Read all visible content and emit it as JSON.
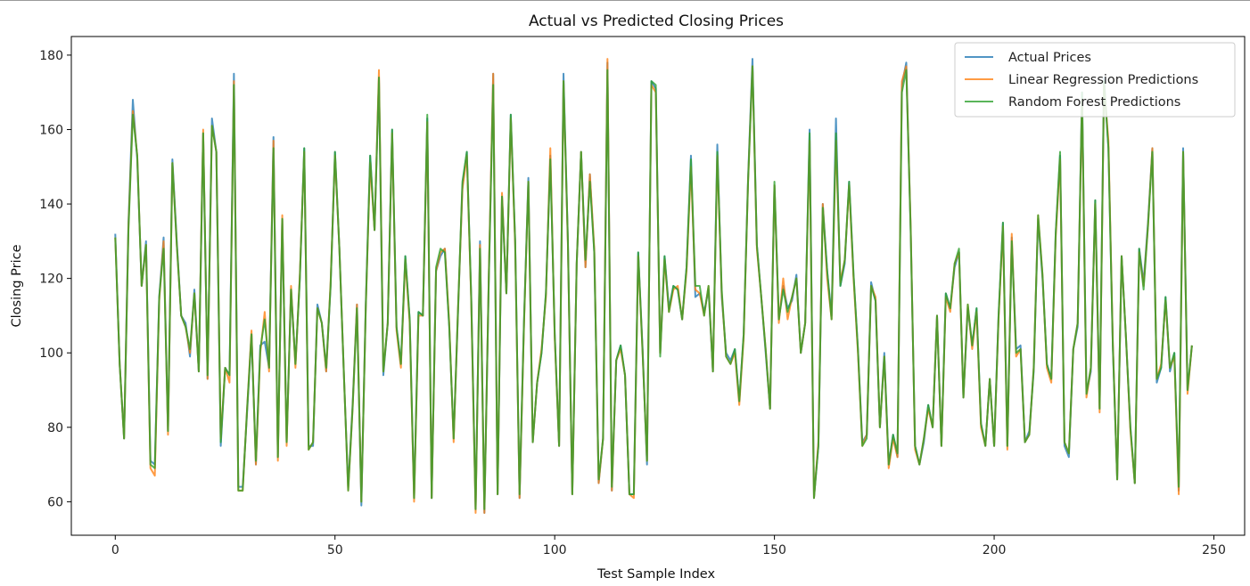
{
  "chart_data": {
    "type": "line",
    "title": "Actual vs Predicted Closing Prices",
    "xlabel": "Test Sample Index",
    "ylabel": "Closing Price",
    "xlim": [
      -10,
      257
    ],
    "ylim": [
      51,
      185
    ],
    "xticks": [
      0,
      50,
      100,
      150,
      200,
      250
    ],
    "yticks": [
      60,
      80,
      100,
      120,
      140,
      160,
      180
    ],
    "grid": false,
    "legend_position": "top-right",
    "x": [
      0,
      1,
      2,
      3,
      4,
      5,
      6,
      7,
      8,
      9,
      10,
      11,
      12,
      13,
      14,
      15,
      16,
      17,
      18,
      19,
      20,
      21,
      22,
      23,
      24,
      25,
      26,
      27,
      28,
      29,
      30,
      31,
      32,
      33,
      34,
      35,
      36,
      37,
      38,
      39,
      40,
      41,
      42,
      43,
      44,
      45,
      46,
      47,
      48,
      49,
      50,
      51,
      52,
      53,
      54,
      55,
      56,
      57,
      58,
      59,
      60,
      61,
      62,
      63,
      64,
      65,
      66,
      67,
      68,
      69,
      70,
      71,
      72,
      73,
      74,
      75,
      76,
      77,
      78,
      79,
      80,
      81,
      82,
      83,
      84,
      85,
      86,
      87,
      88,
      89,
      90,
      91,
      92,
      93,
      94,
      95,
      96,
      97,
      98,
      99,
      100,
      101,
      102,
      103,
      104,
      105,
      106,
      107,
      108,
      109,
      110,
      111,
      112,
      113,
      114,
      115,
      116,
      117,
      118,
      119,
      120,
      121,
      122,
      123,
      124,
      125,
      126,
      127,
      128,
      129,
      130,
      131,
      132,
      133,
      134,
      135,
      136,
      137,
      138,
      139,
      140,
      141,
      142,
      143,
      144,
      145,
      146,
      147,
      148,
      149,
      150,
      151,
      152,
      153,
      154,
      155,
      156,
      157,
      158,
      159,
      160,
      161,
      162,
      163,
      164,
      165,
      166,
      167,
      168,
      169,
      170,
      171,
      172,
      173,
      174,
      175,
      176,
      177,
      178,
      179,
      180,
      181,
      182,
      183,
      184,
      185,
      186,
      187,
      188,
      189,
      190,
      191,
      192,
      193,
      194,
      195,
      196,
      197,
      198,
      199,
      200,
      201,
      202,
      203,
      204,
      205,
      206,
      207,
      208,
      209,
      210,
      211,
      212,
      213,
      214,
      215,
      216,
      217,
      218,
      219,
      220,
      221,
      222,
      223,
      224,
      225,
      226,
      227,
      228,
      229,
      230,
      231,
      232,
      233,
      234,
      235,
      236,
      237,
      238,
      239,
      240,
      241,
      242,
      243,
      244,
      245
    ],
    "series": [
      {
        "name": "Actual Prices",
        "color": "#1f77b4",
        "values": [
          132,
          97,
          77,
          135,
          168,
          152,
          118,
          130,
          71,
          70,
          115,
          131,
          79,
          152,
          130,
          110,
          108,
          99,
          117,
          95,
          159,
          93,
          163,
          154,
          75,
          96,
          94,
          175,
          64,
          64,
          84,
          105,
          70,
          102,
          103,
          96,
          158,
          72,
          136,
          76,
          117,
          97,
          120,
          155,
          75,
          75,
          113,
          108,
          95,
          118,
          154,
          128,
          95,
          64,
          86,
          113,
          59,
          113,
          153,
          133,
          174,
          94,
          108,
          160,
          107,
          97,
          126,
          109,
          61,
          111,
          110,
          163,
          61,
          122,
          126,
          128,
          107,
          77,
          111,
          145,
          154,
          115,
          58,
          130,
          57,
          120,
          175,
          62,
          142,
          116,
          164,
          130,
          61,
          108,
          147,
          76,
          92,
          100,
          116,
          153,
          105,
          75,
          175,
          130,
          62,
          124,
          154,
          123,
          148,
          127,
          65,
          77,
          178,
          63,
          98,
          102,
          94,
          62,
          62,
          127,
          101,
          70,
          173,
          171,
          100,
          126,
          112,
          118,
          117,
          109,
          123,
          153,
          115,
          116,
          111,
          117,
          95,
          156,
          115,
          100,
          98,
          101,
          87,
          105,
          147,
          179,
          129,
          115,
          100,
          85,
          145,
          109,
          118,
          112,
          114,
          121,
          100,
          108,
          160,
          61,
          75,
          140,
          122,
          110,
          163,
          118,
          124,
          146,
          121,
          101,
          76,
          78,
          119,
          114,
          80,
          100,
          70,
          78,
          72,
          172,
          178,
          133,
          75,
          70,
          76,
          86,
          80,
          110,
          75,
          116,
          112,
          123,
          127,
          88,
          112,
          102,
          112,
          81,
          75,
          93,
          75,
          110,
          135,
          75,
          131,
          101,
          102,
          76,
          79,
          95,
          136,
          120,
          97,
          93,
          132,
          153,
          75,
          72,
          101,
          107,
          170,
          89,
          95,
          141,
          85,
          174,
          155,
          102,
          66,
          126,
          104,
          80,
          65,
          128,
          119,
          135,
          155,
          92,
          96,
          115,
          95,
          100,
          63,
          155,
          90,
          102
        ]
      },
      {
        "name": "Linear Regression Predictions",
        "color": "#ff7f0e",
        "values": [
          131,
          97,
          77,
          134,
          165,
          153,
          118,
          129,
          69,
          67,
          114,
          130,
          78,
          151,
          129,
          110,
          107,
          100,
          116,
          95,
          160,
          93,
          161,
          154,
          77,
          96,
          92,
          173,
          63,
          63,
          85,
          106,
          70,
          100,
          111,
          95,
          157,
          71,
          137,
          75,
          118,
          96,
          121,
          154,
          74,
          76,
          112,
          108,
          95,
          119,
          153,
          128,
          95,
          63,
          85,
          113,
          60,
          112,
          151,
          133,
          176,
          95,
          108,
          159,
          106,
          96,
          125,
          108,
          60,
          110,
          110,
          162,
          61,
          122,
          127,
          128,
          108,
          76,
          112,
          144,
          153,
          114,
          57,
          129,
          57,
          121,
          175,
          62,
          143,
          116,
          163,
          129,
          61,
          107,
          146,
          76,
          92,
          101,
          115,
          155,
          104,
          75,
          173,
          129,
          62,
          124,
          154,
          123,
          148,
          128,
          65,
          77,
          179,
          63,
          98,
          101,
          94,
          62,
          61,
          126,
          100,
          71,
          172,
          170,
          100,
          125,
          111,
          117,
          118,
          109,
          122,
          150,
          117,
          116,
          110,
          118,
          95,
          153,
          116,
          99,
          97,
          100,
          86,
          104,
          146,
          177,
          128,
          115,
          101,
          85,
          145,
          108,
          120,
          109,
          115,
          120,
          100,
          108,
          157,
          61,
          76,
          140,
          120,
          109,
          157,
          119,
          125,
          145,
          120,
          100,
          75,
          78,
          118,
          115,
          80,
          99,
          69,
          77,
          72,
          173,
          177,
          134,
          74,
          70,
          77,
          85,
          80,
          110,
          75,
          115,
          111,
          124,
          127,
          88,
          113,
          101,
          111,
          80,
          75,
          93,
          75,
          109,
          134,
          74,
          132,
          99,
          101,
          76,
          78,
          96,
          137,
          121,
          96,
          92,
          131,
          152,
          76,
          73,
          101,
          108,
          168,
          88,
          96,
          140,
          84,
          172,
          157,
          103,
          66,
          126,
          104,
          79,
          65,
          127,
          118,
          134,
          155,
          93,
          97,
          114,
          96,
          99,
          62,
          154,
          89,
          102
        ]
      },
      {
        "name": "Random Forest Predictions",
        "color": "#2ca02c",
        "values": [
          131,
          97,
          77,
          133,
          164,
          153,
          118,
          129,
          70,
          69,
          115,
          128,
          79,
          151,
          129,
          110,
          107,
          101,
          116,
          95,
          159,
          94,
          161,
          154,
          76,
          96,
          94,
          172,
          63,
          63,
          85,
          105,
          71,
          101,
          109,
          96,
          155,
          72,
          136,
          76,
          117,
          97,
          120,
          155,
          74,
          76,
          112,
          108,
          96,
          118,
          154,
          128,
          95,
          63,
          85,
          112,
          60,
          112,
          153,
          133,
          174,
          95,
          108,
          160,
          107,
          97,
          126,
          109,
          61,
          111,
          110,
          164,
          61,
          123,
          128,
          127,
          107,
          77,
          112,
          146,
          154,
          115,
          58,
          128,
          58,
          120,
          172,
          62,
          142,
          116,
          164,
          130,
          62,
          108,
          146,
          76,
          92,
          100,
          116,
          152,
          105,
          75,
          173,
          130,
          62,
          124,
          154,
          125,
          146,
          127,
          66,
          77,
          176,
          64,
          98,
          102,
          94,
          62,
          62,
          127,
          100,
          71,
          173,
          172,
          99,
          126,
          111,
          118,
          117,
          109,
          123,
          152,
          118,
          118,
          110,
          118,
          95,
          154,
          117,
          99,
          97,
          101,
          87,
          105,
          146,
          177,
          129,
          115,
          101,
          85,
          146,
          109,
          117,
          111,
          115,
          120,
          100,
          108,
          159,
          61,
          75,
          139,
          122,
          109,
          159,
          118,
          125,
          146,
          121,
          101,
          75,
          77,
          118,
          114,
          80,
          99,
          70,
          78,
          73,
          170,
          176,
          133,
          75,
          70,
          77,
          86,
          80,
          110,
          75,
          116,
          112,
          124,
          128,
          88,
          113,
          102,
          112,
          81,
          75,
          93,
          75,
          110,
          135,
          75,
          130,
          100,
          101,
          76,
          78,
          96,
          137,
          121,
          97,
          93,
          132,
          154,
          76,
          73,
          101,
          108,
          170,
          89,
          96,
          141,
          85,
          173,
          155,
          102,
          66,
          126,
          104,
          80,
          65,
          128,
          117,
          134,
          154,
          93,
          96,
          115,
          96,
          100,
          64,
          154,
          90,
          102
        ]
      }
    ]
  }
}
